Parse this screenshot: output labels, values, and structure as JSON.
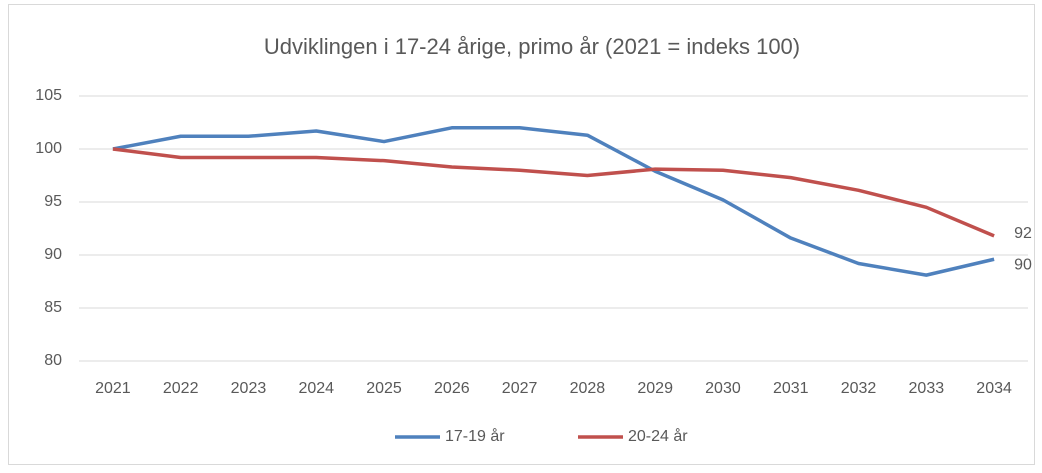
{
  "chart_data": {
    "type": "line",
    "title": "Udviklingen i 17-24 årige, primo år (2021 = indeks 100)",
    "categories": [
      "2021",
      "2022",
      "2023",
      "2024",
      "2025",
      "2026",
      "2027",
      "2028",
      "2029",
      "2030",
      "2031",
      "2032",
      "2033",
      "2034"
    ],
    "series": [
      {
        "name": "17-19 år",
        "color": "#4f81bd",
        "values": [
          100,
          101.2,
          101.2,
          101.7,
          100.7,
          102.0,
          102.0,
          101.3,
          97.9,
          95.2,
          91.6,
          89.2,
          88.1,
          89.6
        ],
        "value_labels": [
          null,
          null,
          null,
          null,
          null,
          null,
          null,
          null,
          null,
          null,
          null,
          null,
          null,
          "90"
        ]
      },
      {
        "name": "20-24 år",
        "color": "#c0504d",
        "values": [
          100,
          99.2,
          99.2,
          99.2,
          98.9,
          98.3,
          98.0,
          97.5,
          98.1,
          98.0,
          97.3,
          96.1,
          94.5,
          91.8
        ],
        "value_labels": [
          null,
          null,
          null,
          null,
          null,
          null,
          null,
          null,
          null,
          null,
          null,
          null,
          null,
          "92"
        ]
      }
    ],
    "ylim": [
      80,
      105
    ],
    "yticks": [
      80,
      85,
      90,
      95,
      100,
      105
    ],
    "grid": true,
    "legend": "bottom"
  }
}
